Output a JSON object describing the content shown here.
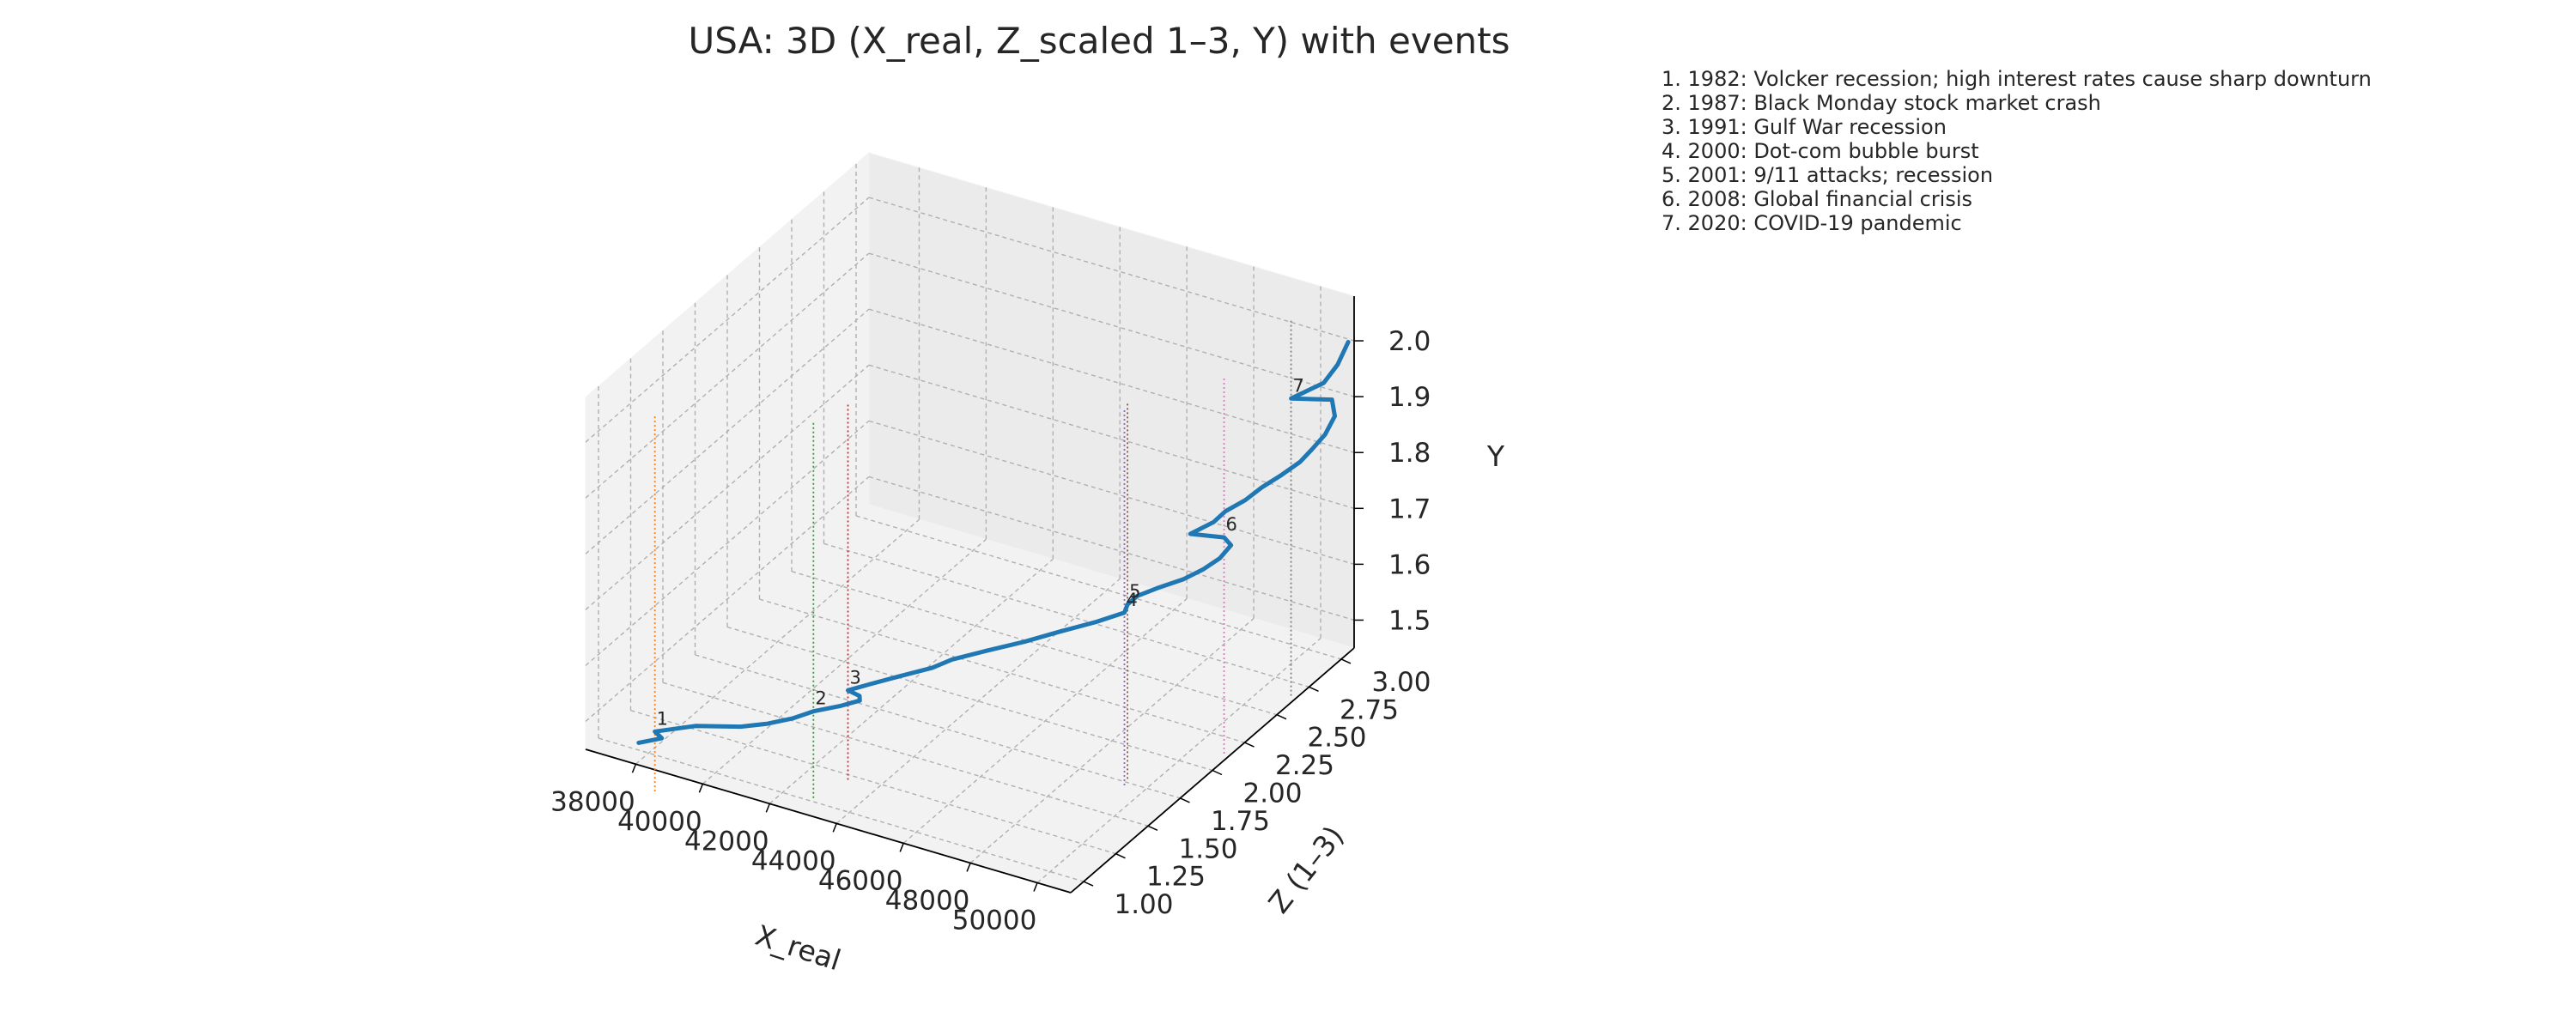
{
  "chart_data": {
    "type": "line3d",
    "title": "USA: 3D (X_real, Z_scaled 1–3, Y) with events",
    "xlabel": "X_real",
    "ylabel": "Z (1–3)",
    "zlabel": "Y",
    "xlim": [
      36500,
      51000
    ],
    "ylim": [
      0.9,
      3.1
    ],
    "zlim": [
      1.45,
      2.08
    ],
    "x_ticks": [
      "38000",
      "40000",
      "42000",
      "44000",
      "46000",
      "48000",
      "50000"
    ],
    "y_ticks": [
      "1.00",
      "1.25",
      "1.50",
      "1.75",
      "2.00",
      "2.25",
      "2.50",
      "2.75",
      "3.00"
    ],
    "z_ticks": [
      "1.5",
      "1.6",
      "1.7",
      "1.8",
      "1.9",
      "2.0"
    ],
    "grid": true,
    "series": [
      {
        "color": "#1f77b4",
        "points": [
          {
            "year": 1980,
            "x": 37700,
            "y": 1.0,
            "z": 1.463
          },
          {
            "year": 1981,
            "x": 38200,
            "y": 1.05,
            "z": 1.47
          },
          {
            "year": 1982,
            "x": 37800,
            "y": 1.1,
            "z": 1.465
          },
          {
            "year": 1983,
            "x": 38700,
            "y": 1.18,
            "z": 1.475
          },
          {
            "year": 1984,
            "x": 39900,
            "y": 1.22,
            "z": 1.487
          },
          {
            "year": 1985,
            "x": 40500,
            "y": 1.27,
            "z": 1.493
          },
          {
            "year": 1986,
            "x": 41100,
            "y": 1.31,
            "z": 1.505
          },
          {
            "year": 1987,
            "x": 41500,
            "y": 1.37,
            "z": 1.513
          },
          {
            "year": 1988,
            "x": 42100,
            "y": 1.42,
            "z": 1.523
          },
          {
            "year": 1989,
            "x": 42500,
            "y": 1.47,
            "z": 1.53
          },
          {
            "year": 1990,
            "x": 42300,
            "y": 1.52,
            "z": 1.525
          },
          {
            "year": 1991,
            "x": 41800,
            "y": 1.56,
            "z": 1.518
          },
          {
            "year": 1992,
            "x": 42300,
            "y": 1.6,
            "z": 1.53
          },
          {
            "year": 1993,
            "x": 42900,
            "y": 1.66,
            "z": 1.542
          },
          {
            "year": 1994,
            "x": 43700,
            "y": 1.72,
            "z": 1.56
          },
          {
            "year": 1995,
            "x": 44100,
            "y": 1.77,
            "z": 1.572
          },
          {
            "year": 1996,
            "x": 44900,
            "y": 1.83,
            "z": 1.59
          },
          {
            "year": 1997,
            "x": 45800,
            "y": 1.89,
            "z": 1.61
          },
          {
            "year": 1998,
            "x": 46600,
            "y": 1.95,
            "z": 1.63
          },
          {
            "year": 1999,
            "x": 47500,
            "y": 2.01,
            "z": 1.652
          },
          {
            "year": 2000,
            "x": 48100,
            "y": 2.07,
            "z": 1.667
          },
          {
            "year": 2001,
            "x": 48000,
            "y": 2.12,
            "z": 1.67
          },
          {
            "year": 2002,
            "x": 48100,
            "y": 2.17,
            "z": 1.677
          },
          {
            "year": 2003,
            "x": 48500,
            "y": 2.22,
            "z": 1.688
          },
          {
            "year": 2004,
            "x": 49100,
            "y": 2.27,
            "z": 1.705
          },
          {
            "year": 2005,
            "x": 49500,
            "y": 2.32,
            "z": 1.72
          },
          {
            "year": 2006,
            "x": 49800,
            "y": 2.37,
            "z": 1.735
          },
          {
            "year": 2007,
            "x": 49900,
            "y": 2.43,
            "z": 1.748
          },
          {
            "year": 2008,
            "x": 49500,
            "y": 2.48,
            "z": 1.745
          },
          {
            "year": 2009,
            "x": 48300,
            "y": 2.53,
            "z": 1.72
          },
          {
            "year": 2010,
            "x": 48800,
            "y": 2.58,
            "z": 1.74
          },
          {
            "year": 2011,
            "x": 49000,
            "y": 2.62,
            "z": 1.755
          },
          {
            "year": 2012,
            "x": 49400,
            "y": 2.67,
            "z": 1.772
          },
          {
            "year": 2013,
            "x": 49700,
            "y": 2.72,
            "z": 1.79
          },
          {
            "year": 2014,
            "x": 50100,
            "y": 2.76,
            "z": 1.81
          },
          {
            "year": 2015,
            "x": 50500,
            "y": 2.81,
            "z": 1.832
          },
          {
            "year": 2016,
            "x": 50700,
            "y": 2.85,
            "z": 1.85
          },
          {
            "year": 2017,
            "x": 50900,
            "y": 2.9,
            "z": 1.87
          },
          {
            "year": 2018,
            "x": 51000,
            "y": 2.95,
            "z": 1.895
          },
          {
            "year": 2019,
            "x": 50800,
            "y": 2.98,
            "z": 1.915
          },
          {
            "year": 2020,
            "x": 49500,
            "y": 3.0,
            "z": 1.89
          },
          {
            "year": 2021,
            "x": 50400,
            "y": 3.02,
            "z": 1.93
          },
          {
            "year": 2022,
            "x": 50700,
            "y": 3.05,
            "z": 1.962
          },
          {
            "year": 2023,
            "x": 50900,
            "y": 3.08,
            "z": 2.0
          }
        ]
      }
    ],
    "events": [
      {
        "number": "1",
        "year": 1982,
        "color": "#ff7f0e",
        "text": "1. 1982: Volcker recession; high interest rates cause sharp downturn"
      },
      {
        "number": "2",
        "year": 1987,
        "color": "#2ca02c",
        "text": "2. 1987: Black Monday stock market crash"
      },
      {
        "number": "3",
        "year": 1991,
        "color": "#d62728",
        "text": "3. 1991: Gulf War recession"
      },
      {
        "number": "4",
        "year": 2000,
        "color": "#9467bd",
        "text": "4. 2000: Dot-com bubble burst"
      },
      {
        "number": "5",
        "year": 2001,
        "color": "#8c564b",
        "text": "5. 2001: 9/11 attacks; recession"
      },
      {
        "number": "6",
        "year": 2008,
        "color": "#e377c2",
        "text": "6. 2008: Global financial crisis"
      },
      {
        "number": "7",
        "year": 2020,
        "color": "#7f7f7f",
        "text": "7. 2020: COVID-19 pandemic"
      }
    ],
    "legend_position": "top-right"
  }
}
